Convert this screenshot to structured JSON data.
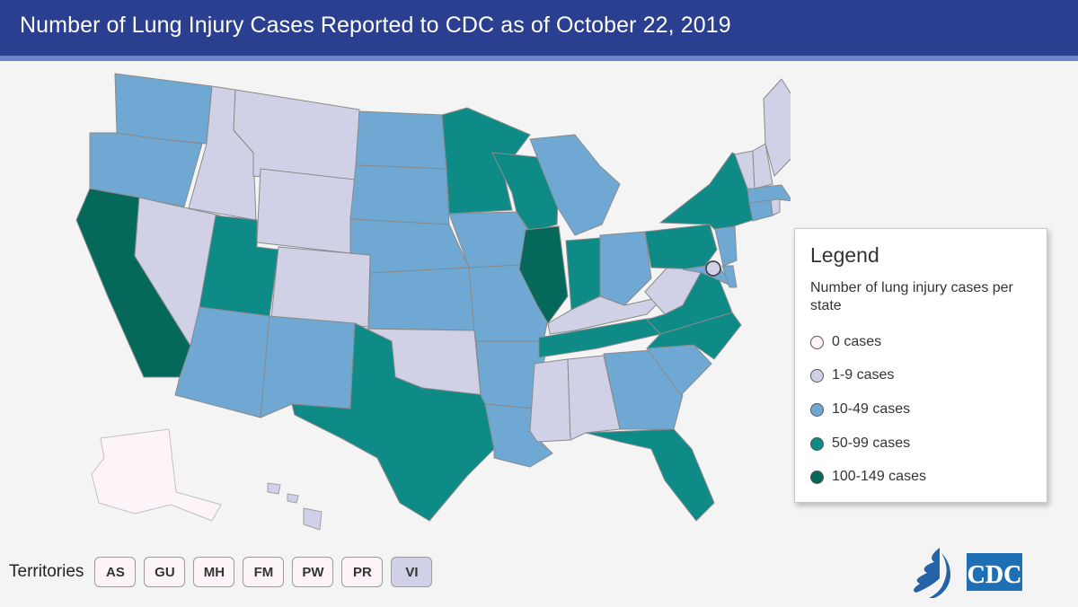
{
  "header": {
    "title": "Number of Lung Injury Cases Reported to CDC as of October 22, 2019"
  },
  "colors": {
    "header_bg": "#2a3f8f",
    "cat_0": "#fdf4fa",
    "cat_1_9": "#d0d1e6",
    "cat_10_49": "#6fa8d3",
    "cat_50_99": "#0e8a87",
    "cat_100_149": "#04695a",
    "border": "#8a8a8a"
  },
  "legend": {
    "title": "Legend",
    "subtitle": "Number of lung injury cases per state",
    "items": [
      {
        "label": "0 cases",
        "color": "#fdf4fa"
      },
      {
        "label": "1-9 cases",
        "color": "#d0d1e6"
      },
      {
        "label": "10-49 cases",
        "color": "#6fa8d3"
      },
      {
        "label": "50-99 cases",
        "color": "#0e8a87"
      },
      {
        "label": "100-149 cases",
        "color": "#04695a"
      }
    ]
  },
  "map_data": {
    "category_by_state": {
      "WA": "10-49",
      "OR": "10-49",
      "CA": "100-149",
      "ID": "1-9",
      "NV": "1-9",
      "MT": "1-9",
      "WY": "1-9",
      "UT": "50-99",
      "AZ": "10-49",
      "CO": "1-9",
      "NM": "10-49",
      "ND": "10-49",
      "SD": "10-49",
      "NE": "10-49",
      "KS": "10-49",
      "OK": "1-9",
      "TX": "50-99",
      "MN": "50-99",
      "IA": "10-49",
      "MO": "10-49",
      "AR": "10-49",
      "LA": "10-49",
      "WI": "50-99",
      "IL": "100-149",
      "MI": "10-49",
      "IN": "50-99",
      "OH": "10-49",
      "KY": "1-9",
      "TN": "50-99",
      "MS": "1-9",
      "AL": "1-9",
      "GA": "10-49",
      "FL": "50-99",
      "SC": "10-49",
      "NC": "50-99",
      "VA": "50-99",
      "WV": "1-9",
      "PA": "50-99",
      "NY": "50-99",
      "NJ": "10-49",
      "MD": "10-49",
      "DE": "10-49",
      "DC": "1-9",
      "CT": "10-49",
      "RI": "1-9",
      "MA": "10-49",
      "VT": "1-9",
      "NH": "1-9",
      "ME": "1-9",
      "AK": "0",
      "HI": "1-9"
    }
  },
  "territories": {
    "label": "Territories",
    "buttons": [
      {
        "code": "AS",
        "category": "0"
      },
      {
        "code": "GU",
        "category": "0"
      },
      {
        "code": "MH",
        "category": "0"
      },
      {
        "code": "FM",
        "category": "0"
      },
      {
        "code": "PW",
        "category": "0"
      },
      {
        "code": "PR",
        "category": "0"
      },
      {
        "code": "VI",
        "category": "1-9"
      }
    ]
  },
  "logos": {
    "cdc": "CDC",
    "hhs_icon": "hhs-eagle-icon"
  }
}
